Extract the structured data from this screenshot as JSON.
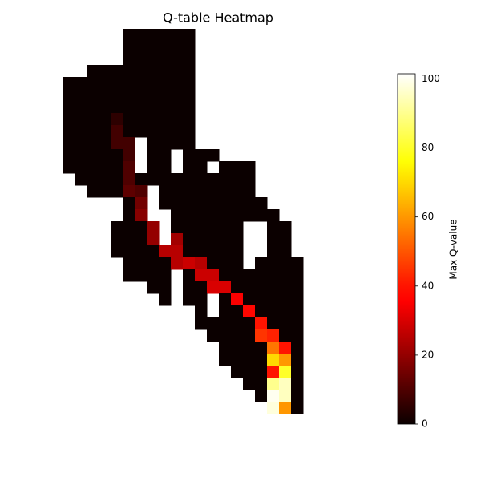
{
  "chart_data": {
    "type": "heatmap",
    "title": "Q-table Heatmap",
    "colorbar_label": "Max Q-value",
    "colormap": "hot",
    "zlim": [
      0,
      101.5
    ],
    "zticks": [
      0,
      20,
      40,
      60,
      80,
      100
    ],
    "values": [
      [
        null,
        null,
        null,
        null,
        null,
        0,
        0,
        0,
        0,
        0,
        0,
        null,
        null,
        null,
        null,
        null,
        null,
        null,
        null,
        null
      ],
      [
        null,
        null,
        null,
        null,
        null,
        0,
        0,
        0,
        0,
        0,
        0,
        null,
        null,
        null,
        null,
        null,
        null,
        null,
        null,
        null
      ],
      [
        null,
        null,
        null,
        null,
        null,
        0,
        0,
        0,
        0,
        0,
        0,
        null,
        null,
        null,
        null,
        null,
        null,
        null,
        null,
        null
      ],
      [
        null,
        null,
        0,
        0,
        0,
        0,
        0,
        0,
        0,
        0,
        0,
        null,
        null,
        null,
        null,
        null,
        null,
        null,
        null,
        null
      ],
      [
        0,
        0,
        0,
        0,
        0,
        0,
        0,
        0,
        0,
        0,
        0,
        null,
        null,
        null,
        null,
        null,
        null,
        null,
        null,
        null
      ],
      [
        0,
        0,
        0,
        0,
        0,
        0,
        0,
        0,
        0,
        0,
        0,
        null,
        null,
        null,
        null,
        null,
        null,
        null,
        null,
        null
      ],
      [
        0,
        0,
        0,
        0,
        0,
        0,
        0,
        0,
        0,
        0,
        0,
        null,
        null,
        null,
        null,
        null,
        null,
        null,
        null,
        null
      ],
      [
        0,
        0,
        0,
        0,
        5,
        0,
        0,
        0,
        0,
        0,
        0,
        null,
        null,
        null,
        null,
        null,
        null,
        null,
        null,
        null
      ],
      [
        0,
        0,
        0,
        0,
        8,
        0,
        0,
        0,
        0,
        0,
        0,
        null,
        null,
        null,
        null,
        null,
        null,
        null,
        null,
        null
      ],
      [
        0,
        0,
        0,
        0,
        8,
        8,
        null,
        0,
        0,
        0,
        0,
        null,
        null,
        null,
        null,
        null,
        null,
        null,
        null,
        null
      ],
      [
        0,
        0,
        0,
        0,
        0,
        8,
        null,
        0,
        0,
        null,
        0,
        0,
        0,
        null,
        null,
        null,
        null,
        null,
        null,
        null
      ],
      [
        0,
        0,
        0,
        0,
        0,
        10,
        null,
        0,
        0,
        null,
        0,
        0,
        null,
        0,
        0,
        0,
        null,
        null,
        null,
        null
      ],
      [
        null,
        0,
        0,
        0,
        0,
        10,
        0,
        0,
        0,
        0,
        0,
        0,
        0,
        0,
        0,
        0,
        null,
        null,
        null,
        null
      ],
      [
        null,
        null,
        0,
        0,
        0,
        12,
        10,
        null,
        0,
        0,
        0,
        0,
        0,
        0,
        0,
        0,
        null,
        null,
        null,
        null
      ],
      [
        null,
        null,
        null,
        null,
        null,
        0,
        15,
        null,
        0,
        0,
        0,
        0,
        0,
        0,
        0,
        0,
        0,
        null,
        null,
        null
      ],
      [
        null,
        null,
        null,
        null,
        null,
        0,
        18,
        null,
        null,
        0,
        0,
        0,
        0,
        0,
        0,
        0,
        0,
        0,
        null,
        null
      ],
      [
        null,
        null,
        null,
        null,
        0,
        0,
        0,
        20,
        null,
        0,
        0,
        0,
        0,
        0,
        0,
        null,
        null,
        0,
        0,
        null
      ],
      [
        null,
        null,
        null,
        null,
        0,
        0,
        0,
        20,
        null,
        22,
        0,
        0,
        0,
        0,
        0,
        null,
        null,
        0,
        0,
        null
      ],
      [
        null,
        null,
        null,
        null,
        0,
        0,
        0,
        0,
        25,
        25,
        0,
        0,
        0,
        0,
        0,
        null,
        null,
        0,
        0,
        null
      ],
      [
        null,
        null,
        null,
        null,
        null,
        0,
        0,
        0,
        0,
        25,
        28,
        25,
        0,
        0,
        0,
        null,
        0,
        0,
        0,
        0
      ],
      [
        null,
        null,
        null,
        null,
        null,
        0,
        0,
        0,
        0,
        null,
        0,
        28,
        28,
        0,
        0,
        0,
        0,
        0,
        0,
        0
      ],
      [
        null,
        null,
        null,
        null,
        null,
        null,
        null,
        0,
        0,
        null,
        0,
        0,
        30,
        30,
        0,
        0,
        0,
        0,
        0,
        0
      ],
      [
        null,
        null,
        null,
        null,
        null,
        null,
        null,
        null,
        0,
        null,
        0,
        0,
        null,
        0,
        35,
        0,
        0,
        0,
        0,
        0
      ],
      [
        null,
        null,
        null,
        null,
        null,
        null,
        null,
        null,
        null,
        null,
        null,
        0,
        null,
        0,
        0,
        38,
        0,
        0,
        0,
        0
      ],
      [
        null,
        null,
        null,
        null,
        null,
        null,
        null,
        null,
        null,
        null,
        null,
        0,
        0,
        0,
        0,
        0,
        40,
        0,
        0,
        0
      ],
      [
        null,
        null,
        null,
        null,
        null,
        null,
        null,
        null,
        null,
        null,
        null,
        null,
        0,
        0,
        0,
        0,
        45,
        42,
        0,
        0
      ],
      [
        null,
        null,
        null,
        null,
        null,
        null,
        null,
        null,
        null,
        null,
        null,
        null,
        null,
        0,
        0,
        0,
        0,
        55,
        40,
        0
      ],
      [
        null,
        null,
        null,
        null,
        null,
        null,
        null,
        null,
        null,
        null,
        null,
        null,
        null,
        0,
        0,
        0,
        0,
        70,
        60,
        0
      ],
      [
        null,
        null,
        null,
        null,
        null,
        null,
        null,
        null,
        null,
        null,
        null,
        null,
        null,
        null,
        0,
        0,
        0,
        40,
        80,
        0
      ],
      [
        null,
        null,
        null,
        null,
        null,
        null,
        null,
        null,
        null,
        null,
        null,
        null,
        null,
        null,
        null,
        0,
        0,
        90,
        95,
        0
      ],
      [
        null,
        null,
        null,
        null,
        null,
        null,
        null,
        null,
        null,
        null,
        null,
        null,
        null,
        null,
        null,
        null,
        0,
        100,
        95,
        0
      ],
      [
        null,
        null,
        null,
        null,
        null,
        null,
        null,
        null,
        null,
        null,
        null,
        null,
        null,
        null,
        null,
        null,
        null,
        98,
        60,
        0
      ]
    ]
  }
}
